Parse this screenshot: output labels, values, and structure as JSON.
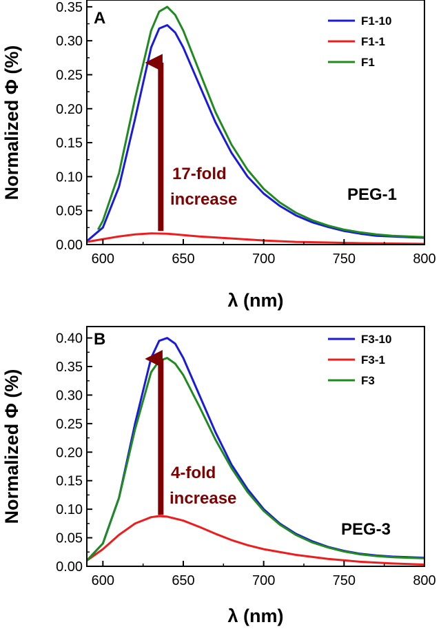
{
  "chart_data": [
    {
      "type": "line",
      "panel": "A",
      "xlabel": "λ (nm)",
      "ylabel": "Normalized Φ (%)",
      "xlim": [
        590,
        800
      ],
      "ylim": [
        0,
        0.36
      ],
      "xticks": [
        600,
        650,
        700,
        750,
        800
      ],
      "xtick_labels": [
        "600",
        "650",
        "700",
        "750",
        "800"
      ],
      "yticks": [
        0.0,
        0.05,
        0.1,
        0.15,
        0.2,
        0.25,
        0.3,
        0.35
      ],
      "ytick_labels": [
        "0.00",
        "0.05",
        "0.10",
        "0.15",
        "0.20",
        "0.25",
        "0.30",
        "0.35"
      ],
      "annotation_line1": "17-fold",
      "annotation_line2": "increase",
      "annotation_color": "#7f0000",
      "arrow_x": 636,
      "arrow_y_from": 0.02,
      "arrow_y_to": 0.29,
      "group_label": "PEG-1",
      "legend_position": "top-right",
      "series": [
        {
          "name": "F1-10",
          "color": "#1a1adf",
          "x": [
            590,
            600,
            610,
            620,
            630,
            635,
            640,
            645,
            650,
            660,
            670,
            680,
            690,
            700,
            710,
            720,
            730,
            740,
            750,
            760,
            770,
            780,
            790,
            800
          ],
          "y": [
            0.005,
            0.025,
            0.085,
            0.185,
            0.29,
            0.318,
            0.323,
            0.312,
            0.29,
            0.235,
            0.18,
            0.135,
            0.1,
            0.075,
            0.057,
            0.043,
            0.033,
            0.026,
            0.02,
            0.016,
            0.013,
            0.012,
            0.011,
            0.01
          ]
        },
        {
          "name": "F1-1",
          "color": "#ee1c1c",
          "x": [
            590,
            600,
            610,
            620,
            630,
            640,
            650,
            660,
            680,
            700,
            720,
            740,
            760,
            780,
            800
          ],
          "y": [
            0.004,
            0.008,
            0.012,
            0.015,
            0.0165,
            0.016,
            0.014,
            0.012,
            0.009,
            0.006,
            0.004,
            0.003,
            0.002,
            0.0015,
            0.001
          ]
        },
        {
          "name": "F1",
          "color": "#1f8a1f",
          "x": [
            597,
            600,
            610,
            620,
            630,
            635,
            640,
            645,
            650,
            660,
            670,
            680,
            690,
            700,
            710,
            720,
            730,
            740,
            750,
            760,
            770,
            780,
            790,
            800
          ],
          "y": [
            0.022,
            0.035,
            0.105,
            0.215,
            0.315,
            0.343,
            0.35,
            0.338,
            0.315,
            0.255,
            0.195,
            0.147,
            0.11,
            0.082,
            0.062,
            0.047,
            0.036,
            0.028,
            0.022,
            0.018,
            0.015,
            0.013,
            0.012,
            0.011
          ]
        }
      ]
    },
    {
      "type": "line",
      "panel": "B",
      "xlabel": "λ (nm)",
      "ylabel": "Normalized Φ (%)",
      "xlim": [
        590,
        800
      ],
      "ylim": [
        0,
        0.42
      ],
      "xticks": [
        600,
        650,
        700,
        750,
        800
      ],
      "xtick_labels": [
        "600",
        "650",
        "700",
        "750",
        "800"
      ],
      "yticks": [
        0.0,
        0.05,
        0.1,
        0.15,
        0.2,
        0.25,
        0.3,
        0.35,
        0.4
      ],
      "ytick_labels": [
        "0.00",
        "0.05",
        "0.10",
        "0.15",
        "0.20",
        "0.25",
        "0.30",
        "0.35",
        "0.40"
      ],
      "annotation_line1": "4-fold",
      "annotation_line2": "increase",
      "annotation_color": "#7f0000",
      "arrow_x": 636,
      "arrow_y_from": 0.09,
      "arrow_y_to": 0.39,
      "group_label": "PEG-3",
      "legend_position": "top-right",
      "series": [
        {
          "name": "F3-10",
          "color": "#1a1adf",
          "x": [
            590,
            600,
            610,
            620,
            630,
            635,
            640,
            645,
            650,
            660,
            670,
            680,
            690,
            700,
            710,
            720,
            730,
            740,
            750,
            760,
            770,
            780,
            790,
            800
          ],
          "y": [
            0.01,
            0.04,
            0.12,
            0.25,
            0.365,
            0.395,
            0.4,
            0.39,
            0.365,
            0.3,
            0.235,
            0.178,
            0.135,
            0.1,
            0.075,
            0.057,
            0.044,
            0.034,
            0.027,
            0.022,
            0.019,
            0.017,
            0.016,
            0.015
          ]
        },
        {
          "name": "F3-1",
          "color": "#ee1c1c",
          "x": [
            590,
            600,
            610,
            620,
            630,
            635,
            640,
            650,
            660,
            670,
            680,
            690,
            700,
            720,
            740,
            760,
            780,
            800
          ],
          "y": [
            0.01,
            0.03,
            0.055,
            0.075,
            0.086,
            0.088,
            0.087,
            0.08,
            0.069,
            0.057,
            0.046,
            0.037,
            0.03,
            0.02,
            0.013,
            0.008,
            0.005,
            0.003
          ]
        },
        {
          "name": "F3",
          "color": "#1f8a1f",
          "x": [
            590,
            600,
            610,
            620,
            630,
            635,
            640,
            645,
            650,
            660,
            670,
            680,
            690,
            700,
            710,
            720,
            730,
            740,
            750,
            760,
            770,
            780,
            790,
            800
          ],
          "y": [
            0.01,
            0.04,
            0.12,
            0.24,
            0.34,
            0.36,
            0.365,
            0.355,
            0.335,
            0.28,
            0.222,
            0.172,
            0.13,
            0.097,
            0.073,
            0.055,
            0.042,
            0.033,
            0.026,
            0.021,
            0.018,
            0.016,
            0.015,
            0.014
          ]
        }
      ]
    }
  ]
}
